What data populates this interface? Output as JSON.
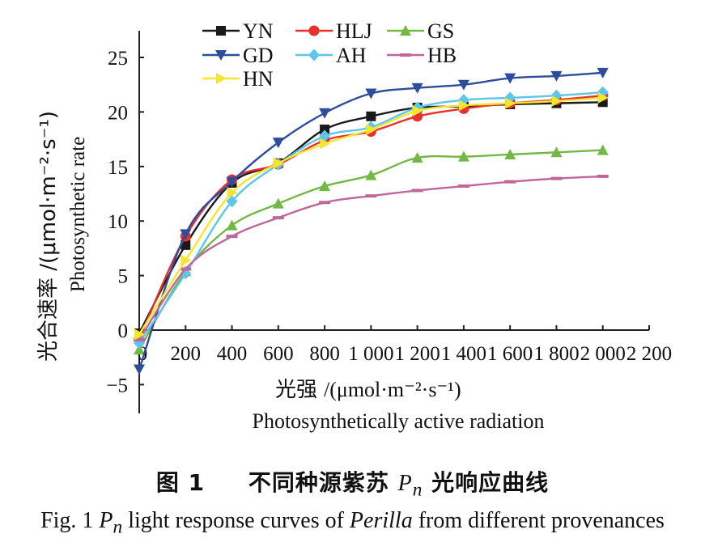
{
  "chart_data": {
    "type": "line",
    "x": [
      0,
      200,
      400,
      600,
      800,
      1000,
      1200,
      1400,
      1600,
      1800,
      2000
    ],
    "xticks": [
      0,
      200,
      400,
      600,
      800,
      1000,
      1200,
      1400,
      1600,
      1800,
      2000,
      2200
    ],
    "xtick_labels": [
      "0",
      "200",
      "400",
      "600",
      "800",
      "1 000",
      "1 200",
      "1 400",
      "1 600",
      "1 800",
      "2 000",
      "2 200"
    ],
    "yticks": [
      -5,
      0,
      5,
      10,
      15,
      20,
      25
    ],
    "ytick_labels": [
      "−5",
      "0",
      "5",
      "10",
      "15",
      "20",
      "25"
    ],
    "xlim": [
      0,
      2200
    ],
    "ylim": [
      -7.5,
      27.5
    ],
    "ylabel_cn": "光合速率 /(μmol·m⁻²·s⁻¹)",
    "ylabel_en": "Photosynthetic rate",
    "xlabel_cn": "光强",
    "xlabel_unit": "/(μmol·m⁻²·s⁻¹)",
    "xlabel_en": "Photosynthetically active radiation",
    "legend_position": "top-left",
    "grid": false,
    "series": [
      {
        "name": "YN",
        "color": "#1a1a1a",
        "marker": "square",
        "values": [
          -0.3,
          7.8,
          13.5,
          15.3,
          18.4,
          19.6,
          20.4,
          20.5,
          20.7,
          20.8,
          20.9
        ]
      },
      {
        "name": "HLJ",
        "color": "#e8312a",
        "marker": "circle",
        "values": [
          -0.8,
          8.6,
          13.8,
          15.2,
          17.4,
          18.2,
          19.6,
          20.3,
          20.8,
          21.1,
          21.5
        ]
      },
      {
        "name": "GS",
        "color": "#72b843",
        "marker": "triangle-up",
        "values": [
          -1.8,
          5.4,
          9.6,
          11.6,
          13.2,
          14.2,
          15.8,
          15.9,
          16.1,
          16.3,
          16.5
        ]
      },
      {
        "name": "GD",
        "color": "#2e4c9c",
        "marker": "triangle-down",
        "values": [
          -3.6,
          8.8,
          13.6,
          17.2,
          19.9,
          21.7,
          22.2,
          22.5,
          23.1,
          23.3,
          23.6
        ]
      },
      {
        "name": "AH",
        "color": "#5ec6ea",
        "marker": "diamond",
        "values": [
          -1.2,
          5.2,
          11.8,
          15.2,
          17.8,
          18.6,
          20.4,
          21.1,
          21.3,
          21.5,
          21.8
        ]
      },
      {
        "name": "HB",
        "color": "#c0669a",
        "marker": "dash",
        "values": [
          -0.9,
          5.6,
          8.6,
          10.3,
          11.7,
          12.3,
          12.8,
          13.2,
          13.6,
          13.9,
          14.1
        ]
      },
      {
        "name": "HN",
        "color": "#f4e62f",
        "marker": "triangle-right",
        "values": [
          -0.4,
          6.4,
          12.6,
          15.3,
          17.1,
          18.4,
          20.1,
          20.6,
          20.8,
          21.0,
          21.3
        ]
      }
    ]
  },
  "caption": {
    "cn_prefix": "图 1",
    "cn_title": "不同种源紫苏",
    "cn_pn_main": "P",
    "cn_pn_sub": "n",
    "cn_suffix": "光响应曲线",
    "en_prefix": "Fig. 1",
    "en_pn_main": "P",
    "en_pn_sub": "n",
    "en_mid": "light response curves of",
    "en_genus": "Perilla",
    "en_suffix": "from different provenances"
  }
}
